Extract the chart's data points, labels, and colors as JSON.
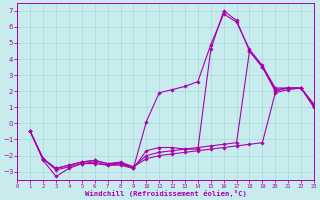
{
  "xlabel": "Windchill (Refroidissement éolien,°C)",
  "xlim": [
    0,
    23
  ],
  "ylim": [
    -3.5,
    7.5
  ],
  "yticks": [
    -3,
    -2,
    -1,
    0,
    1,
    2,
    3,
    4,
    5,
    6,
    7
  ],
  "xticks": [
    0,
    1,
    2,
    3,
    4,
    5,
    6,
    7,
    8,
    9,
    10,
    11,
    12,
    13,
    14,
    15,
    16,
    17,
    18,
    19,
    20,
    21,
    22,
    23
  ],
  "bg": "#c8ecee",
  "grid_color": "#a8d8da",
  "lc": "#aa00aa",
  "lines": [
    {
      "x": [
        1,
        2,
        3,
        4,
        5,
        6,
        7,
        8,
        9,
        10,
        11,
        12,
        13,
        14,
        15,
        16,
        17,
        18,
        19,
        20,
        21,
        22,
        23
      ],
      "y": [
        -0.5,
        -2.3,
        -3.3,
        -2.8,
        -2.5,
        -2.5,
        -2.6,
        -2.6,
        -2.8,
        0.1,
        1.9,
        2.1,
        2.3,
        2.6,
        4.9,
        6.8,
        6.3,
        4.6,
        3.6,
        2.2,
        2.2,
        2.2,
        1.2
      ]
    },
    {
      "x": [
        1,
        2,
        3,
        4,
        5,
        6,
        7,
        8,
        9,
        10,
        11,
        12,
        13,
        14,
        15,
        16,
        17,
        18,
        19,
        20,
        21,
        22,
        23
      ],
      "y": [
        -0.5,
        -2.2,
        -2.9,
        -2.7,
        -2.5,
        -2.4,
        -2.6,
        -2.5,
        -2.8,
        -1.7,
        -1.5,
        -1.5,
        -1.6,
        -1.6,
        4.6,
        7.0,
        6.4,
        4.5,
        3.5,
        2.1,
        2.2,
        2.2,
        1.1
      ]
    },
    {
      "x": [
        1,
        2,
        3,
        4,
        5,
        6,
        7,
        8,
        9,
        10,
        11,
        12,
        13,
        14,
        15,
        16,
        17,
        18,
        19,
        20,
        21,
        22,
        23
      ],
      "y": [
        -0.5,
        -2.2,
        -2.8,
        -2.6,
        -2.4,
        -2.3,
        -2.5,
        -2.5,
        -2.7,
        -2.0,
        -1.8,
        -1.7,
        -1.6,
        -1.5,
        -1.4,
        -1.3,
        -1.2,
        4.5,
        3.5,
        2.0,
        2.2,
        2.2,
        1.0
      ]
    },
    {
      "x": [
        1,
        2,
        3,
        4,
        5,
        6,
        7,
        8,
        9,
        10,
        11,
        12,
        13,
        14,
        15,
        16,
        17,
        18,
        19,
        20,
        21,
        22,
        23
      ],
      "y": [
        -0.5,
        -2.2,
        -2.8,
        -2.6,
        -2.4,
        -2.3,
        -2.5,
        -2.4,
        -2.7,
        -2.2,
        -2.0,
        -1.9,
        -1.8,
        -1.7,
        -1.6,
        -1.5,
        -1.4,
        -1.3,
        -1.2,
        1.9,
        2.1,
        2.2,
        1.0
      ]
    }
  ]
}
